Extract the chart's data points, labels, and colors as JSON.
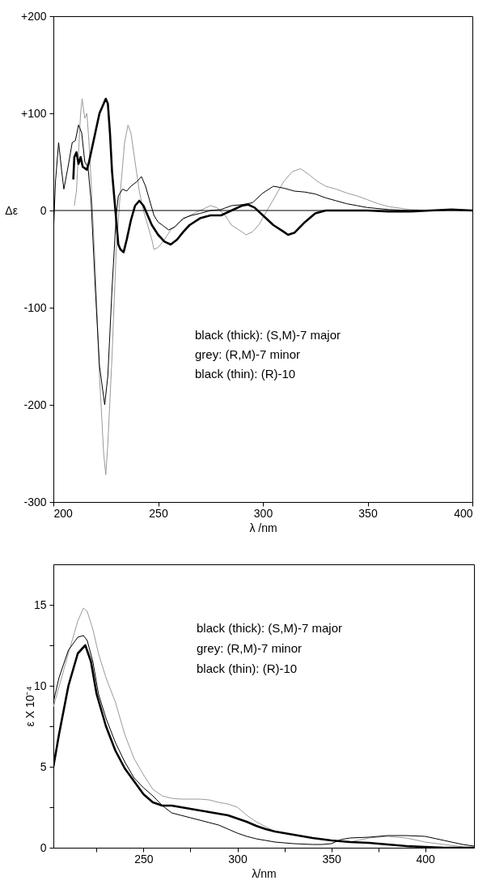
{
  "chart_data": [
    {
      "type": "line",
      "xlabel": "λ /nm",
      "ylabel": "Δε",
      "xlim": [
        200,
        400
      ],
      "ylim": [
        -300,
        200
      ],
      "xticks": [
        200,
        250,
        300,
        350,
        400
      ],
      "yticks": [
        {
          "value": 200,
          "label": "+200"
        },
        {
          "value": 100,
          "label": "+100"
        },
        0,
        -100,
        -200,
        -300
      ],
      "grid": false,
      "marker": "none",
      "line_style": "solid",
      "ref_lines": [
        {
          "axis": "y",
          "value": 0,
          "color": "#000000"
        }
      ],
      "annotations": [
        "black (thick): (S,M)-7 major",
        "grey: (R,M)-7 minor",
        "black (thin): (R)-10"
      ],
      "series": [
        {
          "color": "#999999",
          "x": [
            210,
            211,
            212,
            213,
            213.7,
            215,
            216,
            217,
            218,
            220,
            222,
            224,
            225,
            226,
            228,
            230,
            232,
            234,
            235.6,
            237,
            239,
            241,
            243,
            245,
            247,
            248,
            250,
            253,
            256,
            260,
            265,
            270,
            275,
            278,
            282,
            285,
            290,
            292,
            295,
            298,
            302,
            306,
            310,
            314,
            318,
            322,
            326,
            330,
            335,
            340,
            345,
            350,
            355,
            360,
            370,
            380,
            390,
            400
          ],
          "values": [
            5,
            20,
            60,
            100,
            115,
            95,
            100,
            70,
            30,
            -60,
            -170,
            -250,
            -272,
            -240,
            -150,
            -40,
            20,
            70,
            88,
            80,
            50,
            20,
            0,
            -15,
            -30,
            -40,
            -38,
            -30,
            -20,
            -12,
            -5,
            0,
            5,
            3,
            -5,
            -15,
            -22,
            -25,
            -22,
            -15,
            0,
            15,
            30,
            40,
            43,
            37,
            30,
            25,
            22,
            18,
            15,
            11,
            7,
            4,
            1,
            0,
            0,
            0
          ]
        },
        {
          "color": "#000000",
          "x": [
            200,
            201,
            202.5,
            204,
            205,
            207,
            209,
            210.5,
            212,
            213.5,
            215,
            216.5,
            218,
            220,
            222,
            224.5,
            226,
            228,
            230,
            231,
            233,
            235,
            237,
            240,
            242,
            244,
            246,
            248,
            250,
            252,
            255,
            258,
            262,
            266,
            270,
            275,
            280,
            285,
            290,
            295,
            300,
            305,
            310,
            315,
            320,
            325,
            330,
            335,
            340,
            345,
            350,
            360,
            370,
            380,
            390,
            400
          ],
          "values": [
            -25,
            30,
            70,
            40,
            22,
            45,
            70,
            72,
            88,
            80,
            50,
            45,
            10,
            -80,
            -160,
            -200,
            -170,
            -80,
            -5,
            15,
            22,
            20,
            25,
            30,
            35,
            25,
            10,
            -5,
            -12,
            -15,
            -20,
            -17,
            -8,
            -5,
            -3,
            0,
            1,
            5,
            6,
            8,
            18,
            25,
            23,
            20,
            19,
            17,
            13,
            10,
            7,
            5,
            3,
            1,
            0,
            0,
            1,
            0
          ]
        },
        {
          "color": "#000000",
          "x": [
            209.5,
            210,
            211,
            212,
            213,
            214,
            216,
            217,
            218,
            220,
            222,
            224,
            225,
            226,
            227,
            228,
            230,
            231,
            232,
            233.5,
            235,
            237,
            239,
            241,
            243,
            245,
            247,
            250,
            253,
            256,
            259,
            262,
            265,
            270,
            275,
            280,
            285,
            290,
            293,
            296,
            300,
            305,
            310,
            312,
            315,
            320,
            325,
            330,
            340,
            350,
            360,
            370,
            380,
            390,
            400
          ],
          "values": [
            32,
            55,
            60,
            48,
            55,
            45,
            42,
            50,
            60,
            80,
            100,
            110,
            115,
            110,
            80,
            40,
            -10,
            -35,
            -40,
            -43,
            -30,
            -10,
            5,
            10,
            5,
            -5,
            -15,
            -25,
            -32,
            -35,
            -30,
            -22,
            -15,
            -8,
            -5,
            -5,
            0,
            5,
            6,
            3,
            -5,
            -15,
            -22,
            -25,
            -23,
            -12,
            -3,
            0,
            0,
            0,
            -1,
            -1,
            0,
            1,
            0
          ]
        }
      ]
    },
    {
      "type": "line",
      "xlabel": "λ/nm",
      "ylabel": "ε X 10⁻⁴",
      "xlim": [
        202,
        426
      ],
      "ylim": [
        0,
        17.5
      ],
      "xticks": [
        {
          "value": 225,
          "label": null
        },
        250,
        {
          "value": 275,
          "label": null
        },
        300,
        {
          "value": 325,
          "label": null
        },
        350,
        {
          "value": 375,
          "label": null
        },
        400
      ],
      "yticks": [
        0,
        {
          "value": 2.5,
          "label": null
        },
        5,
        {
          "value": 7.5,
          "label": null
        },
        10,
        {
          "value": 12.5,
          "label": null
        },
        15
      ],
      "grid": false,
      "marker": "none",
      "line_style": "solid",
      "annotations": [
        "black (thick): (S,M)-7 major",
        "grey: (R,M)-7 minor",
        "black (thin): (R)-10"
      ],
      "series": [
        {
          "color": "#999999",
          "x": [
            202,
            210,
            215,
            218,
            220,
            223,
            226,
            230,
            235,
            240,
            245,
            250,
            255,
            260,
            265,
            270,
            275,
            280,
            285,
            290,
            295,
            300,
            305,
            310,
            315,
            320,
            330,
            340,
            350,
            360,
            370,
            380,
            390,
            400,
            410,
            420,
            426
          ],
          "values": [
            8.7,
            12,
            14,
            14.8,
            14.6,
            13.5,
            12,
            10.5,
            9,
            7,
            5.5,
            4.5,
            3.6,
            3.2,
            3.05,
            3,
            3,
            3,
            2.95,
            2.8,
            2.7,
            2.5,
            2,
            1.6,
            1.3,
            1,
            0.8,
            0.6,
            0.45,
            0.35,
            0.6,
            0.7,
            0.6,
            0.35,
            0.2,
            0.05,
            0
          ]
        },
        {
          "color": "#000000",
          "x": [
            202,
            205,
            210,
            215,
            218,
            220,
            223,
            226,
            230,
            235,
            240,
            245,
            250,
            255,
            260,
            265,
            270,
            275,
            280,
            285,
            290,
            295,
            300,
            305,
            310,
            315,
            320,
            330,
            340,
            345,
            350,
            355,
            360,
            370,
            380,
            390,
            400,
            410,
            420,
            426
          ],
          "values": [
            9,
            10.5,
            12.2,
            13,
            13.1,
            12.8,
            11.5,
            9.5,
            8,
            6.5,
            5.3,
            4.3,
            3.7,
            3.2,
            2.6,
            2.15,
            2,
            1.85,
            1.7,
            1.55,
            1.4,
            1.15,
            0.9,
            0.7,
            0.55,
            0.45,
            0.35,
            0.25,
            0.2,
            0.2,
            0.25,
            0.5,
            0.6,
            0.65,
            0.75,
            0.75,
            0.7,
            0.45,
            0.2,
            0.1
          ]
        },
        {
          "color": "#000000",
          "x": [
            202,
            205,
            210,
            215,
            219,
            222,
            225,
            230,
            235,
            240,
            245,
            250,
            255,
            260,
            265,
            270,
            275,
            280,
            285,
            290,
            295,
            300,
            305,
            310,
            315,
            320,
            330,
            340,
            350,
            360,
            370,
            380,
            390,
            400,
            410,
            426
          ],
          "values": [
            5,
            7,
            10,
            12,
            12.5,
            11.5,
            9.5,
            7.5,
            6,
            4.9,
            4.1,
            3.3,
            2.8,
            2.6,
            2.6,
            2.5,
            2.4,
            2.3,
            2.2,
            2.1,
            2,
            1.8,
            1.6,
            1.35,
            1.15,
            1,
            0.8,
            0.6,
            0.45,
            0.35,
            0.3,
            0.2,
            0.1,
            0.05,
            0,
            0
          ]
        }
      ]
    }
  ]
}
